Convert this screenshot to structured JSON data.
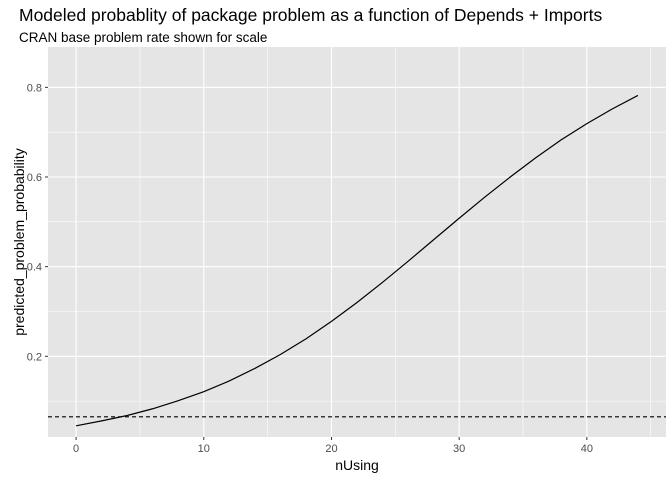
{
  "chart_data": {
    "type": "line",
    "title": "Modeled probablity of package problem as a function of Depends + Imports",
    "subtitle": "CRAN base problem rate shown for scale",
    "xlabel": "nUsing",
    "ylabel": "predicted_problem_probability",
    "xlim": [
      -2.2,
      46.2
    ],
    "ylim": [
      0.02,
      0.89
    ],
    "x_ticks": [
      0,
      10,
      20,
      30,
      40
    ],
    "y_ticks": [
      0.2,
      0.4,
      0.6,
      0.8
    ],
    "x_tick_labels": [
      "0",
      "10",
      "20",
      "30",
      "40"
    ],
    "y_tick_labels": [
      "0.2",
      "0.4",
      "0.6",
      "0.8"
    ],
    "grid": true,
    "background": "#e5e5e5",
    "grid_color": "#ffffff",
    "series": [
      {
        "line_style": "solid",
        "color": "#000000",
        "x": [
          0,
          2,
          4,
          6,
          8,
          10,
          12,
          14,
          16,
          18,
          20,
          22,
          24,
          26,
          28,
          30,
          32,
          34,
          36,
          38,
          40,
          42,
          44
        ],
        "y": [
          0.045,
          0.056,
          0.068,
          0.083,
          0.101,
          0.121,
          0.145,
          0.173,
          0.204,
          0.239,
          0.278,
          0.32,
          0.365,
          0.412,
          0.46,
          0.508,
          0.555,
          0.6,
          0.643,
          0.683,
          0.719,
          0.752,
          0.782
        ]
      }
    ],
    "reference_line": {
      "orientation": "horizontal",
      "y": 0.065,
      "line_style": "dashed",
      "color": "#000000"
    }
  }
}
